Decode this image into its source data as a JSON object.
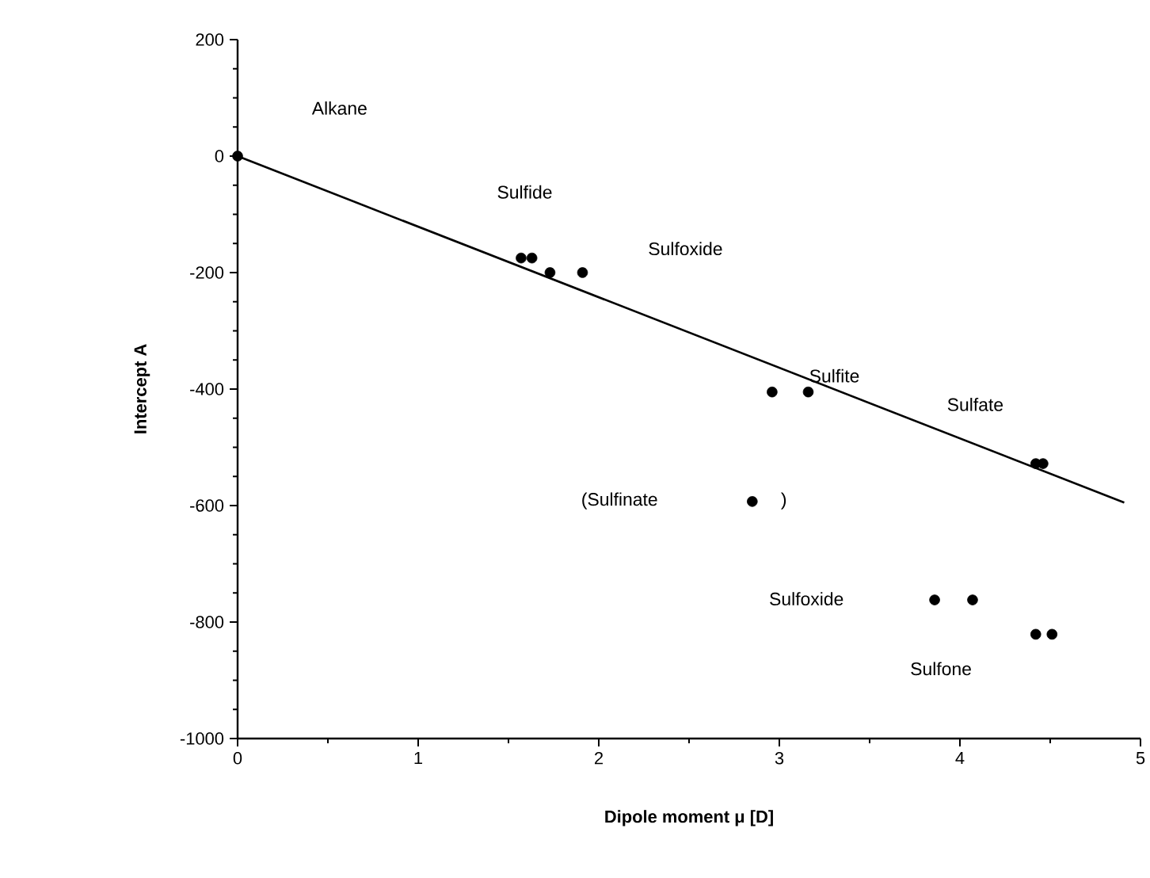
{
  "chart_data": {
    "type": "scatter",
    "xlabel": "Dipole moment μ [D]",
    "ylabel": "Intercept  A",
    "xlim": [
      0,
      5
    ],
    "ylim": [
      -1000,
      200
    ],
    "xticks": [
      0,
      1,
      2,
      3,
      4,
      5
    ],
    "yticks": [
      -1000,
      -800,
      -600,
      -400,
      -200,
      0,
      200
    ],
    "grid": false,
    "marker": "circle",
    "series": [
      {
        "type": "scatter",
        "color": "#000000",
        "x": [
          0,
          1.57,
          1.63,
          1.73,
          1.91,
          2.96,
          3.16,
          4.42,
          4.46,
          2.85,
          3.86,
          4.07,
          4.42,
          4.51
        ],
        "values": [
          0,
          -175,
          -175,
          -200,
          -200,
          -405,
          -405,
          -528,
          -528,
          -593,
          -762,
          -762,
          -821,
          -821
        ]
      },
      {
        "type": "line",
        "color": "#000000",
        "marker": "none",
        "line_style": "solid",
        "x": [
          0,
          4.91
        ],
        "values": [
          0,
          -595
        ]
      }
    ],
    "annotations": [
      "Alkane",
      "Sulfide",
      "Sulfoxide",
      "Sulfite",
      "Sulfate",
      "(Sulfinate",
      ")",
      "Sulfoxide",
      "Sulfone"
    ]
  }
}
